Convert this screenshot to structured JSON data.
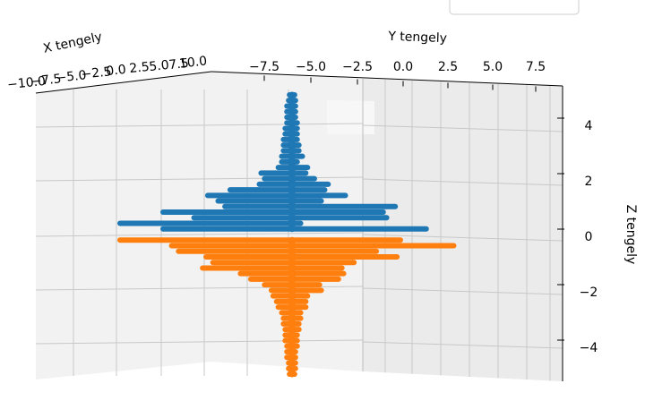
{
  "chart_data": {
    "type": "scatter",
    "projection": "3d",
    "title": "",
    "xlabel": "X tengely",
    "ylabel": "Y tengely",
    "zlabel": "Z tengely",
    "x_ticks": [
      "−10.0",
      "−7.5",
      "−5.0",
      "−2.5",
      "0.0",
      "2.5",
      "5.0",
      "7.5",
      "10.0"
    ],
    "y_ticks": [
      "−7.5",
      "−5.0",
      "−2.5",
      "0.0",
      "2.5",
      "5.0",
      "7.5"
    ],
    "z_ticks": [
      "4",
      "2",
      "0",
      "−2",
      "−4"
    ],
    "xlim": [
      -10,
      10
    ],
    "ylim": [
      -10,
      10
    ],
    "zlim": [
      -5,
      5
    ],
    "grid": true,
    "series": [
      {
        "color": "#1f77b4",
        "profile": [
          [
            0.2,
            -7.5,
            7.8
          ],
          [
            0.4,
            -10.0,
            0.5
          ],
          [
            0.6,
            -5.7,
            5.5
          ],
          [
            0.8,
            -7.5,
            5.3
          ],
          [
            1.0,
            -3.9,
            6.0
          ],
          [
            1.2,
            -4.3,
            1.7
          ],
          [
            1.4,
            -4.9,
            3.1
          ],
          [
            1.6,
            -3.6,
            1.9
          ],
          [
            1.8,
            -1.9,
            2.1
          ],
          [
            2.0,
            -1.6,
            1.3
          ],
          [
            2.2,
            -1.8,
            0.8
          ],
          [
            2.4,
            -0.8,
            0.9
          ],
          [
            2.6,
            -0.6,
            0.3
          ],
          [
            2.8,
            -0.6,
            0.6
          ],
          [
            3.0,
            -0.5,
            0.4
          ],
          [
            3.2,
            -0.5,
            0.4
          ],
          [
            3.4,
            -0.5,
            0.3
          ],
          [
            3.6,
            -0.4,
            0.3
          ],
          [
            3.8,
            -0.4,
            0.3
          ],
          [
            4.0,
            -0.3,
            0.3
          ],
          [
            4.2,
            -0.3,
            0.2
          ],
          [
            4.4,
            -0.3,
            0.2
          ],
          [
            4.6,
            -0.3,
            0.2
          ],
          [
            4.8,
            -0.2,
            0.2
          ],
          [
            5.0,
            -0.15,
            0.15
          ]
        ]
      },
      {
        "color": "#ff7f0e",
        "profile": [
          [
            -0.2,
            -10.0,
            6.3
          ],
          [
            -0.4,
            -7.0,
            9.4
          ],
          [
            -0.6,
            -6.6,
            4.9
          ],
          [
            -0.8,
            -5.0,
            6.1
          ],
          [
            -1.0,
            -4.6,
            3.6
          ],
          [
            -1.2,
            -5.2,
            2.9
          ],
          [
            -1.4,
            -3.0,
            3.0
          ],
          [
            -1.6,
            -2.4,
            2.7
          ],
          [
            -1.8,
            -1.6,
            1.6
          ],
          [
            -2.0,
            -1.2,
            1.7
          ],
          [
            -2.2,
            -1.1,
            0.9
          ],
          [
            -2.4,
            -0.9,
            0.8
          ],
          [
            -2.6,
            -0.8,
            0.8
          ],
          [
            -2.8,
            -0.6,
            0.5
          ],
          [
            -3.0,
            -0.5,
            0.5
          ],
          [
            -3.2,
            -0.5,
            0.4
          ],
          [
            -3.4,
            -0.4,
            0.4
          ],
          [
            -3.6,
            -0.4,
            0.3
          ],
          [
            -3.8,
            -0.4,
            0.3
          ],
          [
            -4.0,
            -0.3,
            0.3
          ],
          [
            -4.2,
            -0.3,
            0.2
          ],
          [
            -4.4,
            -0.3,
            0.2
          ],
          [
            -4.6,
            -0.2,
            0.2
          ],
          [
            -4.8,
            -0.2,
            0.2
          ],
          [
            -5.0,
            -0.15,
            0.15
          ]
        ]
      }
    ]
  }
}
